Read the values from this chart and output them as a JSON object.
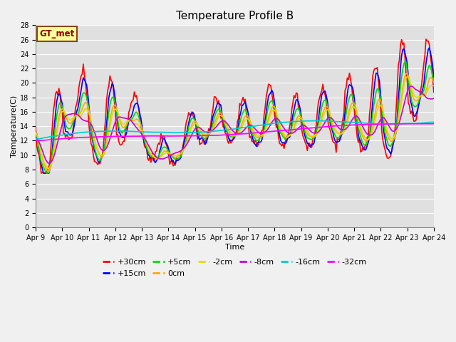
{
  "title": "Temperature Profile B",
  "xlabel": "Time",
  "ylabel": "Temperature(C)",
  "annotation": "GT_met",
  "ylim": [
    0,
    28
  ],
  "x_tick_labels": [
    "Apr 9",
    "Apr 10",
    "Apr 11",
    "Apr 12",
    "Apr 13",
    "Apr 14",
    "Apr 15",
    "Apr 16",
    "Apr 17",
    "Apr 18",
    "Apr 19",
    "Apr 20",
    "Apr 21",
    "Apr 22",
    "Apr 23",
    "Apr 24"
  ],
  "series_colors": {
    "+30cm": "#ff0000",
    "+15cm": "#0000ff",
    "+5cm": "#00dd00",
    "0cm": "#ffaa00",
    "-2cm": "#dddd00",
    "-8cm": "#cc00cc",
    "-16cm": "#00cccc",
    "-32cm": "#ff00ff"
  },
  "bg_color": "#e0e0e0",
  "grid_color": "#ffffff",
  "title_fontsize": 11,
  "tick_fontsize": 7,
  "label_fontsize": 8,
  "legend_fontsize": 8
}
